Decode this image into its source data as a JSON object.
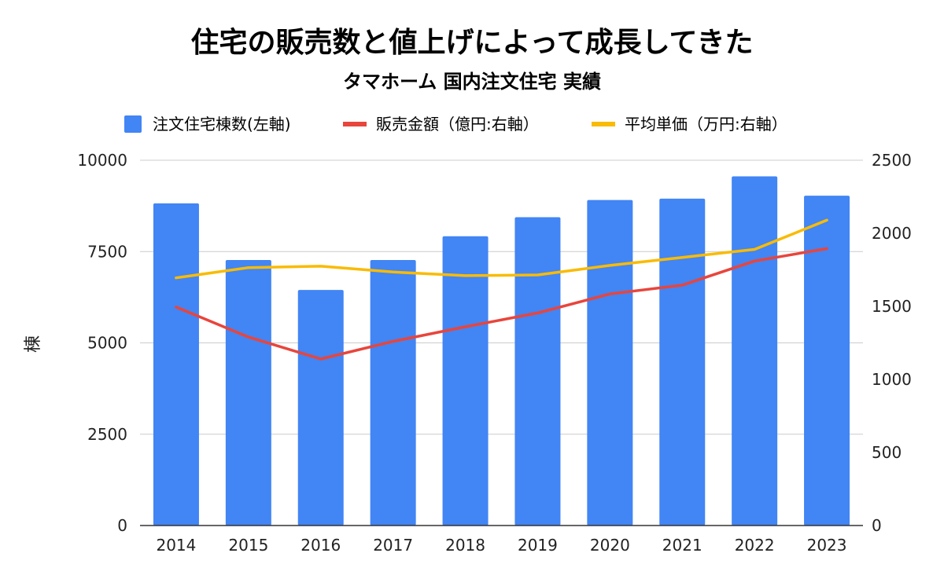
{
  "chart_data": {
    "type": "bar",
    "title": "住宅の販売数と値上げによって成長してきた",
    "subtitle": "タマホーム 国内注文住宅 実績",
    "categories": [
      "2014",
      "2015",
      "2016",
      "2017",
      "2018",
      "2019",
      "2020",
      "2021",
      "2022",
      "2023"
    ],
    "ylabel": "棟",
    "y_left": {
      "min": 0,
      "max": 10000,
      "ticks": [
        "0",
        "2500",
        "5000",
        "7500",
        "10000"
      ]
    },
    "y_right": {
      "min": 0,
      "max": 2500,
      "ticks": [
        "0",
        "500",
        "1000",
        "1500",
        "2000",
        "2500"
      ]
    },
    "grid": true,
    "legend_position": "top",
    "series": [
      {
        "name": "注文住宅棟数(左軸)",
        "type": "bar",
        "axis": "left",
        "color": "#4285F4",
        "values": [
          8820,
          7270,
          6450,
          7270,
          7920,
          8440,
          8910,
          8950,
          9560,
          9030
        ]
      },
      {
        "name": "販売金額（億円:右軸）",
        "type": "line",
        "axis": "right",
        "color": "#E8453C",
        "values": [
          1495,
          1290,
          1140,
          1260,
          1360,
          1455,
          1585,
          1645,
          1810,
          1895
        ]
      },
      {
        "name": "平均単価（万円:右軸）",
        "type": "line",
        "axis": "right",
        "color": "#F9BB04",
        "values": [
          1695,
          1765,
          1775,
          1735,
          1710,
          1715,
          1780,
          1835,
          1890,
          2090
        ]
      }
    ]
  }
}
